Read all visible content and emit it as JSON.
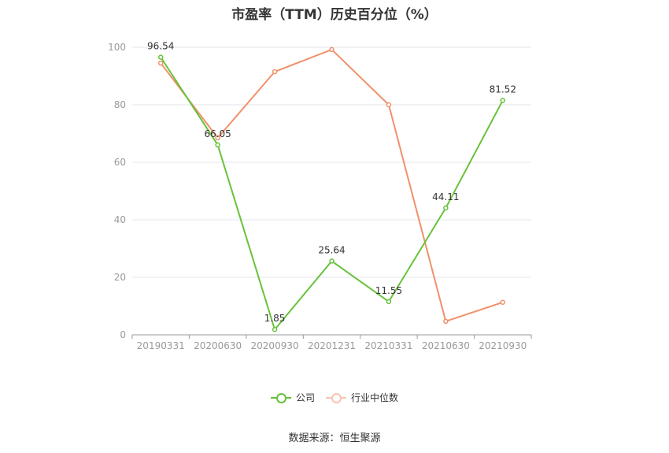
{
  "title": "市盈率（TTM）历史百分位（%）",
  "source": "数据来源：恒生聚源",
  "chart_data": {
    "type": "line",
    "categories": [
      "20190331",
      "20200630",
      "20200930",
      "20201231",
      "20210331",
      "20210630",
      "20210930"
    ],
    "yticks": [
      "0",
      "20",
      "40",
      "60",
      "80",
      "100"
    ],
    "ylim": [
      0,
      100
    ],
    "grid": true,
    "legend_position": "bottom",
    "series": [
      {
        "name": "公司",
        "color": "#67c23a",
        "values": [
          96.54,
          66.05,
          1.85,
          25.64,
          11.55,
          44.11,
          81.52
        ],
        "labels": [
          "96.54",
          "66.05",
          "1.85",
          "25.64",
          "11.55",
          "44.11",
          "81.52"
        ]
      },
      {
        "name": "行业中位数",
        "color": "#f0916a",
        "values": [
          94.5,
          68.5,
          91.5,
          99.2,
          80.0,
          4.7,
          11.3
        ]
      }
    ]
  }
}
